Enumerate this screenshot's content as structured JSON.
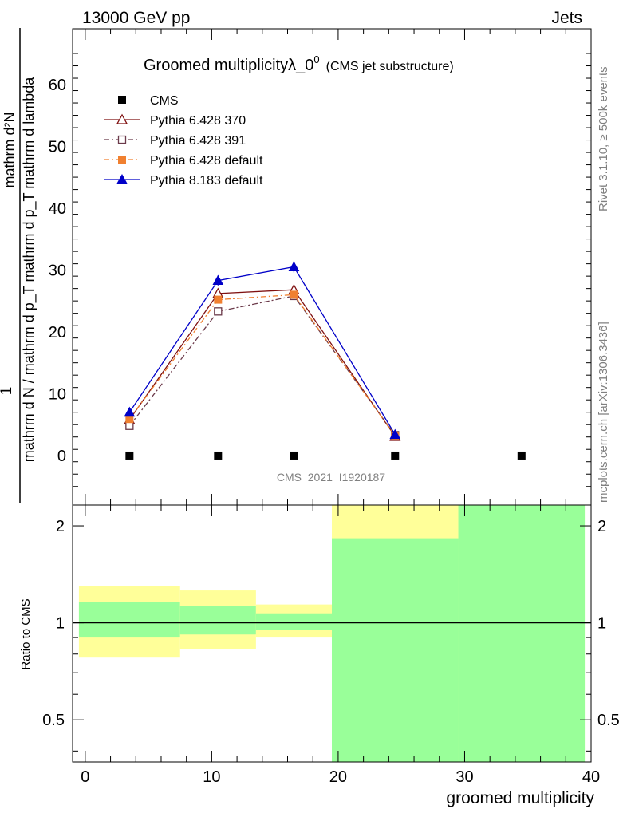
{
  "header": {
    "energy": "13000 GeV pp",
    "category": "Jets"
  },
  "side": {
    "rivet": "Rivet 3.1.10, ≥ 500k events",
    "mcplots": "mcplots.cern.ch [arXiv:1306.3436]"
  },
  "chart_data": [
    {
      "type": "scatter",
      "title": "Groomed multiplicityλ_0",
      "title_sup": "0",
      "subtitle": "(CMS jet substructure)",
      "watermark": "CMS_2021_I1920187",
      "ylabel": {
        "numerator": "mathrm d²N",
        "denominator": "mathrm d N / mathrm d p_T mathrm d p_T mathrm d lambda",
        "prefix": "1"
      },
      "xlim": [
        -1,
        40
      ],
      "ylim": [
        -8,
        69
      ],
      "yticks": [
        "0",
        "10",
        "20",
        "30",
        "40",
        "50",
        "60"
      ],
      "ytick_values": [
        0,
        10,
        20,
        30,
        40,
        50,
        60
      ],
      "series": [
        {
          "name": "CMS",
          "color": "#000000",
          "marker": "square",
          "line": "none",
          "x": [
            3.5,
            10.5,
            16.5,
            24.5,
            34.5
          ],
          "y": [
            0,
            0,
            0,
            0,
            0
          ],
          "err": [
            0,
            0,
            0,
            0,
            0
          ]
        },
        {
          "name": "Pythia 6.428 370",
          "color": "#7f1010",
          "marker": "triangle-open",
          "line": "solid",
          "x": [
            3.5,
            10.5,
            16.5,
            24.5
          ],
          "y": [
            5.8,
            26.2,
            26.8,
            3.1
          ],
          "err": [
            0.3,
            0.6,
            0.6,
            0.2
          ]
        },
        {
          "name": "Pythia 6.428 391",
          "color": "#6b3a4a",
          "marker": "square-open",
          "line": "dashdot",
          "x": [
            3.5,
            10.5,
            16.5,
            24.5
          ],
          "y": [
            4.8,
            23.3,
            25.8,
            3.3
          ],
          "err": [
            0.3,
            0.6,
            0.6,
            0.2
          ]
        },
        {
          "name": "Pythia 6.428 default",
          "color": "#f08030",
          "marker": "square",
          "line": "dashdot",
          "x": [
            3.5,
            10.5,
            16.5,
            24.5
          ],
          "y": [
            5.9,
            25.2,
            26.0,
            3.2
          ],
          "err": [
            0.3,
            0.6,
            0.6,
            0.2
          ]
        },
        {
          "name": "Pythia 8.183 default",
          "color": "#0000c8",
          "marker": "triangle",
          "line": "solid",
          "x": [
            3.5,
            10.5,
            16.5,
            24.5
          ],
          "y": [
            7.0,
            28.3,
            30.5,
            3.4
          ],
          "err": [
            0.3,
            0.8,
            0.9,
            0.2
          ]
        }
      ]
    },
    {
      "type": "bar",
      "ylabel": "Ratio to CMS",
      "xlabel": "groomed multiplicity",
      "xlim": [
        -1,
        40
      ],
      "ylim_log": [
        0.37,
        2.32
      ],
      "reference_line": 1,
      "xticks": [
        "0",
        "10",
        "20",
        "30",
        "40"
      ],
      "xtick_values": [
        0,
        10,
        20,
        30,
        40
      ],
      "yticks": [
        "0.5",
        "1",
        "2"
      ],
      "ytick_values": [
        0.5,
        1,
        2
      ],
      "bands": [
        {
          "x0": -0.5,
          "x1": 7.5,
          "yellow": [
            0.78,
            1.3
          ],
          "green": [
            0.9,
            1.16
          ]
        },
        {
          "x0": 7.5,
          "x1": 13.5,
          "yellow": [
            0.83,
            1.26
          ],
          "green": [
            0.92,
            1.13
          ]
        },
        {
          "x0": 13.5,
          "x1": 19.5,
          "yellow": [
            0.9,
            1.14
          ],
          "green": [
            0.95,
            1.07
          ]
        },
        {
          "x0": 19.5,
          "x1": 29.5,
          "yellow": [
            0.37,
            2.32
          ],
          "green": [
            0.37,
            1.83
          ]
        },
        {
          "x0": 29.5,
          "x1": 39.5,
          "yellow": [
            0.37,
            2.32
          ],
          "green": [
            0.37,
            2.32
          ]
        }
      ],
      "colors": {
        "yellow": "#ffff99",
        "green": "#99ff99"
      }
    }
  ]
}
